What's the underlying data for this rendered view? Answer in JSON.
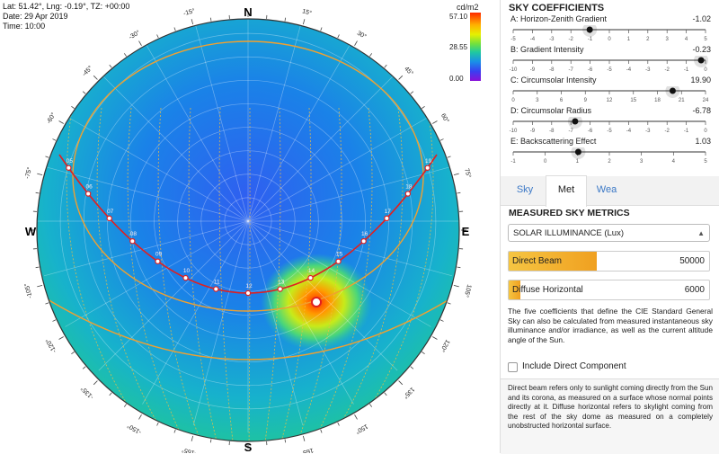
{
  "info": {
    "location": "Lat: 51.42°, Lng: -0.19°, TZ: +00:00",
    "date": "Date: 29 Apr 2019",
    "time": "Time: 10:00"
  },
  "legend": {
    "unit": "cd/m2",
    "max": "57.10",
    "mid": "28.55",
    "min": "0.00"
  },
  "compass": {
    "north": "N",
    "south": "S",
    "east": "E",
    "west": "W"
  },
  "azimuth_labels": [
    "-15°",
    "15°",
    "30°",
    "-30°",
    "45°",
    "-45°",
    "60°",
    "-60°",
    "75°",
    "-75°",
    "105°",
    "-105°",
    "120°",
    "-120°",
    "135°",
    "-135°",
    "150°",
    "-150°",
    "165°",
    "-165°"
  ],
  "sun_path_hour_labels": [
    "05",
    "06",
    "07",
    "08",
    "09",
    "10",
    "11",
    "12",
    "13",
    "14",
    "15",
    "16",
    "17",
    "18",
    "19"
  ],
  "coefficients": {
    "title": "SKY COEFFICIENTS",
    "items": [
      {
        "name": "A: Horizon-Zenith Gradient",
        "value": "-1.02",
        "min": -5,
        "max": 5,
        "step": 1,
        "level": -1.02
      },
      {
        "name": "B: Gradient Intensity",
        "value": "-0.23",
        "min": -10,
        "max": 0,
        "step": 1,
        "level": -0.23
      },
      {
        "name": "C: Circumsolar Intensity",
        "value": "19.90",
        "min": 0,
        "max": 24,
        "step": 3,
        "level": 19.9
      },
      {
        "name": "D: Circumsolar Radius",
        "value": "-6.78",
        "min": -10,
        "max": 0,
        "step": 1,
        "level": -6.78
      },
      {
        "name": "E: Backscattering Effect",
        "value": "1.03",
        "min": -1,
        "max": 5,
        "step": 1,
        "level": 1.03
      }
    ]
  },
  "tabs": [
    {
      "label": "Sky"
    },
    {
      "label": "Met"
    },
    {
      "label": "Wea"
    }
  ],
  "metrics": {
    "title": "MEASURED SKY METRICS",
    "select_value": "SOLAR ILLUMINANCE (Lux)",
    "direct_label": "Direct Beam",
    "direct_value": "50000",
    "direct_fill": 0.44,
    "diffuse_label": "Diffuse Horizontal",
    "diffuse_value": "6000",
    "diffuse_fill": 0.06,
    "description": "The five coefficients that define the CIE Standard General Sky can also be calculated from measured instantaneous sky illuminance and/or irradiance, as well as the current altitude angle of the Sun.",
    "checkbox_label": "Include Direct Component",
    "note": "Direct beam refers only to sunlight coming directly from the Sun and its corona, as measured on a surface whose normal points directly at it. Diffuse horizontal refers to skylight coming from the rest of the sky dome as measured on a completely unobstructed horizontal surface."
  },
  "colors": {
    "accent": "#3b78c6",
    "sun_path": "#e02020",
    "date_line": "#f0a030",
    "bar_fill": "#f0a020"
  }
}
